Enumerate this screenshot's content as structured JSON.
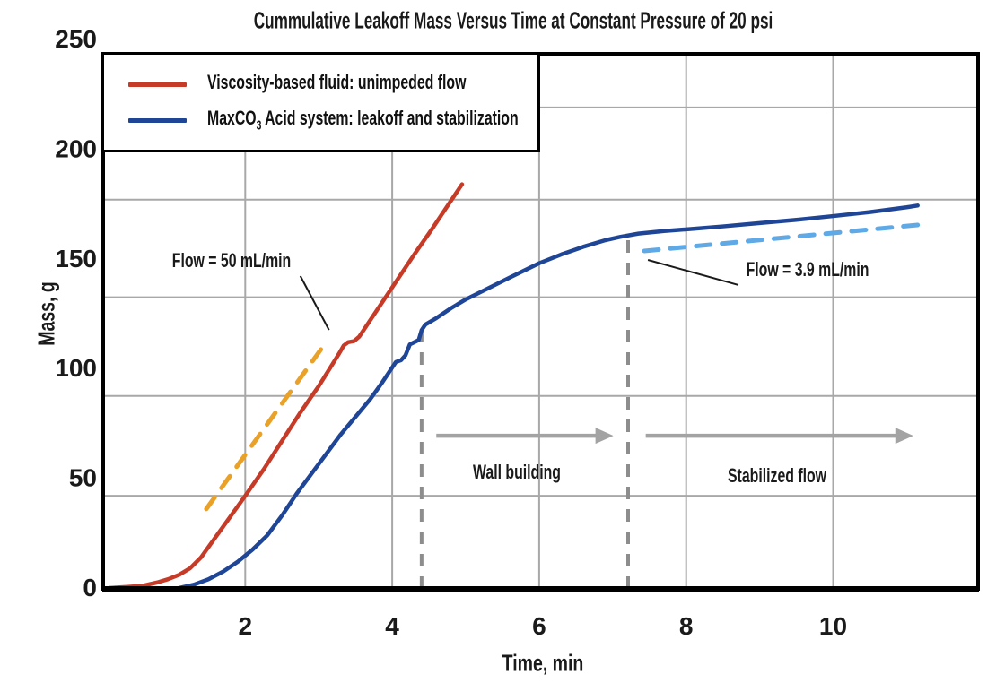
{
  "title": "Cummulative Leakoff Mass Versus Time at Constant Pressure of 20 psi",
  "chart_data": {
    "type": "line",
    "title": "Cummulative Leakoff Mass Versus Time at Constant Pressure of 20 psi",
    "xlabel": "Time, min",
    "ylabel": "Mass, g",
    "xlim": [
      0,
      11.9
    ],
    "ylim": [
      0,
      250
    ],
    "x_ticks": [
      2,
      4,
      6,
      8,
      10
    ],
    "y_ticks": [
      0,
      50,
      100,
      150,
      200,
      250
    ],
    "grid": true,
    "y_gridlines": [
      42,
      87.5,
      132.5,
      177,
      219
    ],
    "legend_position": "top-left",
    "series": [
      {
        "name": "Viscosity-based fluid: unimpeded flow",
        "color": "#c63b27",
        "style": "solid",
        "width": 4.5,
        "points": [
          [
            0.15,
            0
          ],
          [
            0.4,
            0.5
          ],
          [
            0.6,
            1
          ],
          [
            0.8,
            2.5
          ],
          [
            0.95,
            4
          ],
          [
            1.1,
            6
          ],
          [
            1.25,
            9
          ],
          [
            1.4,
            14
          ],
          [
            1.55,
            21
          ],
          [
            1.7,
            28
          ],
          [
            1.85,
            35
          ],
          [
            2.0,
            42
          ],
          [
            2.25,
            54
          ],
          [
            2.5,
            67
          ],
          [
            2.75,
            80
          ],
          [
            3.0,
            92
          ],
          [
            3.15,
            100
          ],
          [
            3.28,
            107
          ],
          [
            3.34,
            110.5
          ],
          [
            3.4,
            112
          ],
          [
            3.48,
            112.5
          ],
          [
            3.55,
            114.5
          ],
          [
            3.7,
            122
          ],
          [
            3.9,
            132
          ],
          [
            4.1,
            142
          ],
          [
            4.3,
            152
          ],
          [
            4.55,
            164
          ],
          [
            4.75,
            174
          ],
          [
            4.95,
            184
          ]
        ]
      },
      {
        "name": "MaxCO3 Acid system: leakoff and stabilization",
        "color": "#1f4596",
        "style": "solid",
        "width": 4.5,
        "points": [
          [
            1.1,
            0
          ],
          [
            1.3,
            1.5
          ],
          [
            1.5,
            4
          ],
          [
            1.7,
            7.5
          ],
          [
            1.9,
            12
          ],
          [
            2.1,
            17.5
          ],
          [
            2.3,
            24
          ],
          [
            2.5,
            33
          ],
          [
            2.7,
            43
          ],
          [
            2.9,
            52
          ],
          [
            3.1,
            61
          ],
          [
            3.3,
            70
          ],
          [
            3.5,
            78
          ],
          [
            3.7,
            86
          ],
          [
            3.85,
            93
          ],
          [
            3.95,
            98
          ],
          [
            4.0,
            100.5
          ],
          [
            4.05,
            103
          ],
          [
            4.12,
            103.8
          ],
          [
            4.18,
            106
          ],
          [
            4.24,
            111
          ],
          [
            4.3,
            112
          ],
          [
            4.36,
            113
          ],
          [
            4.4,
            117.5
          ],
          [
            4.45,
            120
          ],
          [
            4.6,
            123
          ],
          [
            4.8,
            127.5
          ],
          [
            5.0,
            131.5
          ],
          [
            5.3,
            136.5
          ],
          [
            5.6,
            141.5
          ],
          [
            6.0,
            148
          ],
          [
            6.3,
            152
          ],
          [
            6.6,
            155.5
          ],
          [
            6.9,
            158.5
          ],
          [
            7.1,
            160
          ],
          [
            7.35,
            161.5
          ],
          [
            7.7,
            162.7
          ],
          [
            8.1,
            163.7
          ],
          [
            8.5,
            164.8
          ],
          [
            9.0,
            166.3
          ],
          [
            9.5,
            167.8
          ],
          [
            10.0,
            169.5
          ],
          [
            10.5,
            171.3
          ],
          [
            11.0,
            173.5
          ],
          [
            11.15,
            174.3
          ]
        ]
      },
      {
        "name": "50 mL/min tangent",
        "color": "#e9a128",
        "style": "dashed",
        "width": 5,
        "points": [
          [
            1.47,
            36
          ],
          [
            3.1,
            112
          ]
        ]
      },
      {
        "name": "3.9 mL/min tangent",
        "color": "#5fa9e6",
        "style": "dashed",
        "width": 5,
        "points": [
          [
            7.43,
            153.6
          ],
          [
            11.26,
            165.8
          ]
        ]
      }
    ],
    "reference_lines": [
      {
        "x": 4.4,
        "y_top": 117.5
      },
      {
        "x": 7.21,
        "y_top": 160
      }
    ],
    "annotations": {
      "flow50": {
        "text": "Flow = 50 mL/min",
        "t": 1.81,
        "m": 149.1,
        "leader": {
          "t1": 2.75,
          "m1": 142.2,
          "t2": 3.14,
          "m2": 117.6
        }
      },
      "flow39": {
        "text": "Flow = 3.9 mL/min",
        "t": 9.65,
        "m": 145.0,
        "leader": {
          "t1": 7.48,
          "m1": 149.5,
          "t2": 8.71,
          "m2": 138.1
        }
      },
      "wall_building": {
        "text": "Wall building",
        "t": 5.7,
        "m": 52.7
      },
      "stabilized_flow": {
        "text": "Stabilized flow",
        "t": 9.24,
        "m": 51.1
      },
      "arrows": [
        {
          "t1": 4.6,
          "t2": 7.01,
          "m": 69.4
        },
        {
          "t1": 7.45,
          "t2": 11.09,
          "m": 69.4
        }
      ]
    },
    "colors": {
      "grid": "#a8a8a8",
      "frame": "#000000",
      "reference_dash": "#8d8d8d",
      "arrow": "#a3a3a3",
      "leader": "#1a1a1a",
      "tick_text": "#1a1a1a"
    }
  },
  "legend": {
    "items": [
      {
        "prefix": "Viscosity-based fluid: unimpeded flow",
        "sub": "",
        "suffix": ""
      },
      {
        "prefix": "MaxCO",
        "sub": "3",
        "suffix": " Acid system: leakoff and stabilization"
      }
    ]
  },
  "axis": {
    "x_title": "Time, min",
    "y_title": "Mass, g"
  }
}
